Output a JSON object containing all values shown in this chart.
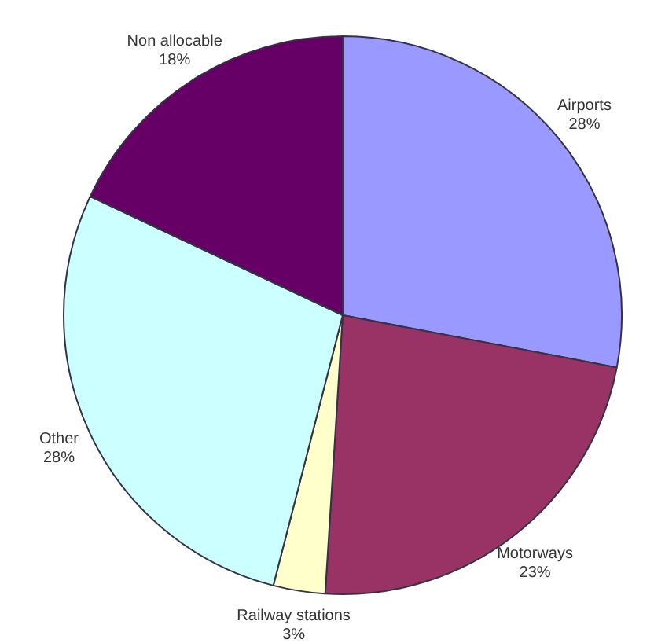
{
  "chart_data": {
    "type": "pie",
    "categories": [
      "Airports",
      "Motorways",
      "Railway stations",
      "Other",
      "Non allocable"
    ],
    "values": [
      28,
      23,
      3,
      28,
      18
    ],
    "value_labels": [
      "28%",
      "23%",
      "3%",
      "28%",
      "18%"
    ],
    "colors": [
      "#9999ff",
      "#993366",
      "#ffffcc",
      "#ccffff",
      "#660066"
    ],
    "legend": false
  }
}
